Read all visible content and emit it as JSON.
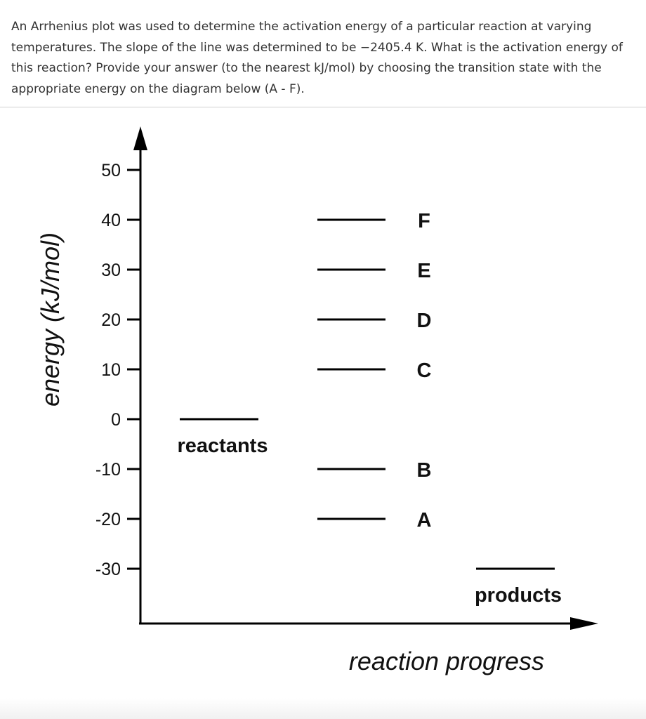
{
  "question": {
    "text": "An Arrhenius plot was used to determine the activation energy of a particular reaction at varying temperatures. The slope of the line was determined to be −2405.4 K. What is the activation energy of this reaction? Provide your answer (to the nearest kJ/mol) by choosing the transition state with the appropriate energy on the diagram below (A - F)."
  },
  "diagram": {
    "y_axis_label": "energy (kJ/mol)",
    "x_axis_label": "reaction progress",
    "y_ticks": [
      50,
      40,
      30,
      20,
      10,
      0,
      -10,
      -20,
      -30
    ],
    "y_tick_labels": [
      "50",
      "40",
      "30",
      "20",
      "10",
      "0",
      "-10",
      "-20",
      "-30"
    ],
    "ylim": [
      -30,
      50
    ],
    "levels": [
      {
        "label": "reactants",
        "energy": 0,
        "stage": "start"
      },
      {
        "label": "A",
        "energy": -20,
        "stage": "transition"
      },
      {
        "label": "B",
        "energy": -10,
        "stage": "transition"
      },
      {
        "label": "C",
        "energy": 10,
        "stage": "transition"
      },
      {
        "label": "D",
        "energy": 20,
        "stage": "transition"
      },
      {
        "label": "E",
        "energy": 30,
        "stage": "transition"
      },
      {
        "label": "F",
        "energy": 40,
        "stage": "transition"
      },
      {
        "label": "products",
        "energy": -30,
        "stage": "end"
      }
    ]
  }
}
